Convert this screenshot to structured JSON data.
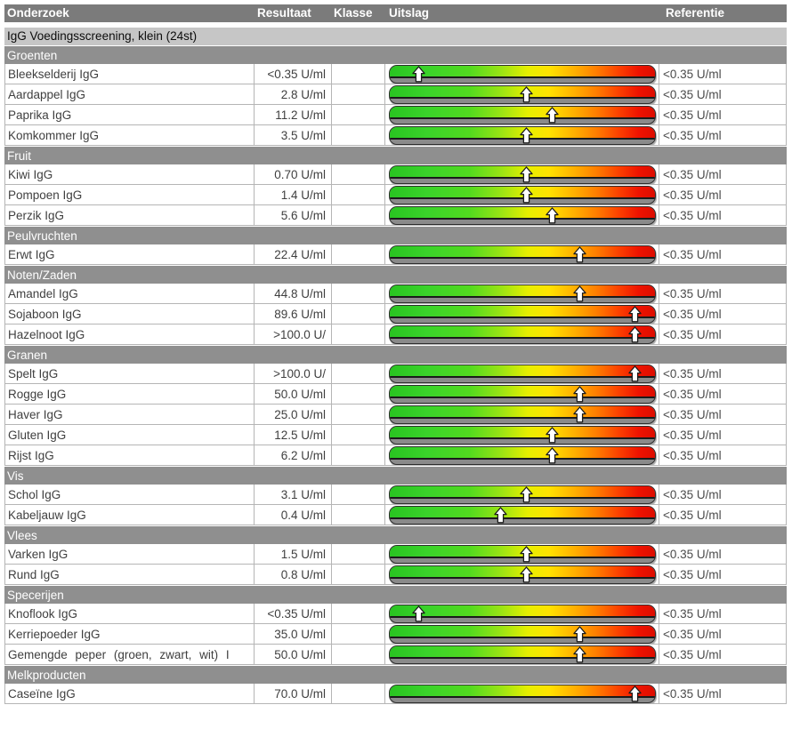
{
  "header": {
    "columns": [
      "Onderzoek",
      "Resultaat",
      "Klasse",
      "Uitslag",
      "Referentie"
    ]
  },
  "subheader": "IgG Voedingsscreening, klein (24st)",
  "colors": {
    "header_bg": "#7b7b7b",
    "category_bg": "#8f8f8f",
    "subheader_bg": "#c6c6c6",
    "bar_green": "#3ad32a",
    "bar_yellow": "#ffe300",
    "bar_red": "#ee1200",
    "bar_base_gray": "#8a8a8a"
  },
  "marker_icon": "up-arrow-icon",
  "sections": [
    {
      "title": "Groenten",
      "rows": [
        {
          "name": "Bleekselderij IgG",
          "result": "<0.35 U/ml",
          "klasse": "",
          "reference": "<0.35 U/ml",
          "marker_pct": 11
        },
        {
          "name": "Aardappel IgG",
          "result": "2.8 U/ml",
          "klasse": "",
          "reference": "<0.35 U/ml",
          "marker_pct": 51.5
        },
        {
          "name": "Paprika IgG",
          "result": "11.2 U/ml",
          "klasse": "",
          "reference": "<0.35 U/ml",
          "marker_pct": 61
        },
        {
          "name": "Komkommer IgG",
          "result": "3.5 U/ml",
          "klasse": "",
          "reference": "<0.35 U/ml",
          "marker_pct": 51.5
        }
      ]
    },
    {
      "title": "Fruit",
      "rows": [
        {
          "name": "Kiwi IgG",
          "result": "0.70 U/ml",
          "klasse": "",
          "reference": "<0.35 U/ml",
          "marker_pct": 51.5
        },
        {
          "name": "Pompoen IgG",
          "result": "1.4 U/ml",
          "klasse": "",
          "reference": "<0.35 U/ml",
          "marker_pct": 51.5
        },
        {
          "name": "Perzik IgG",
          "result": "5.6 U/ml",
          "klasse": "",
          "reference": "<0.35 U/ml",
          "marker_pct": 61
        }
      ]
    },
    {
      "title": "Peulvruchten",
      "rows": [
        {
          "name": "Erwt IgG",
          "result": "22.4 U/ml",
          "klasse": "",
          "reference": "<0.35 U/ml",
          "marker_pct": 71.5
        }
      ]
    },
    {
      "title": "Noten/Zaden",
      "rows": [
        {
          "name": "Amandel IgG",
          "result": "44.8 U/ml",
          "klasse": "",
          "reference": "<0.35 U/ml",
          "marker_pct": 71.5
        },
        {
          "name": "Sojaboon IgG",
          "result": "89.6 U/ml",
          "klasse": "",
          "reference": "<0.35 U/ml",
          "marker_pct": 92
        },
        {
          "name": "Hazelnoot IgG",
          "result": ">100.0 U/",
          "klasse": "",
          "reference": "<0.35 U/ml",
          "marker_pct": 92
        }
      ]
    },
    {
      "title": "Granen",
      "rows": [
        {
          "name": "Spelt IgG",
          "result": ">100.0 U/",
          "klasse": "",
          "reference": "<0.35 U/ml",
          "marker_pct": 92
        },
        {
          "name": "Rogge IgG",
          "result": "50.0 U/ml",
          "klasse": "",
          "reference": "<0.35 U/ml",
          "marker_pct": 71.5
        },
        {
          "name": "Haver IgG",
          "result": "25.0 U/ml",
          "klasse": "",
          "reference": "<0.35 U/ml",
          "marker_pct": 71.5
        },
        {
          "name": "Gluten IgG",
          "result": "12.5 U/ml",
          "klasse": "",
          "reference": "<0.35 U/ml",
          "marker_pct": 61
        },
        {
          "name": "Rijst IgG",
          "result": "6.2 U/ml",
          "klasse": "",
          "reference": "<0.35 U/ml",
          "marker_pct": 61
        }
      ]
    },
    {
      "title": "Vis",
      "rows": [
        {
          "name": "Schol IgG",
          "result": "3.1 U/ml",
          "klasse": "",
          "reference": "<0.35 U/ml",
          "marker_pct": 51.5
        },
        {
          "name": "Kabeljauw IgG",
          "result": "0.4 U/ml",
          "klasse": "",
          "reference": "<0.35 U/ml",
          "marker_pct": 42
        }
      ]
    },
    {
      "title": "Vlees",
      "rows": [
        {
          "name": "Varken IgG",
          "result": "1.5 U/ml",
          "klasse": "",
          "reference": "<0.35 U/ml",
          "marker_pct": 51.5
        },
        {
          "name": "Rund IgG",
          "result": "0.8 U/ml",
          "klasse": "",
          "reference": "<0.35 U/ml",
          "marker_pct": 51.5
        }
      ]
    },
    {
      "title": "Specerijen",
      "rows": [
        {
          "name": "Knoflook IgG",
          "result": "<0.35 U/ml",
          "klasse": "",
          "reference": "<0.35 U/ml",
          "marker_pct": 11
        },
        {
          "name": "Kerriepoeder IgG",
          "result": "35.0 U/ml",
          "klasse": "",
          "reference": "<0.35 U/ml",
          "marker_pct": 71.5
        },
        {
          "name": "Gemengde peper (groen, zwart, wit) I",
          "result": "50.0 U/ml",
          "klasse": "",
          "reference": "<0.35 U/ml",
          "marker_pct": 71.5,
          "wide_spacing": true
        }
      ]
    },
    {
      "title": "Melkproducten",
      "rows": [
        {
          "name": "Caseïne IgG",
          "result": "70.0 U/ml",
          "klasse": "",
          "reference": "<0.35 U/ml",
          "marker_pct": 92
        }
      ]
    }
  ]
}
